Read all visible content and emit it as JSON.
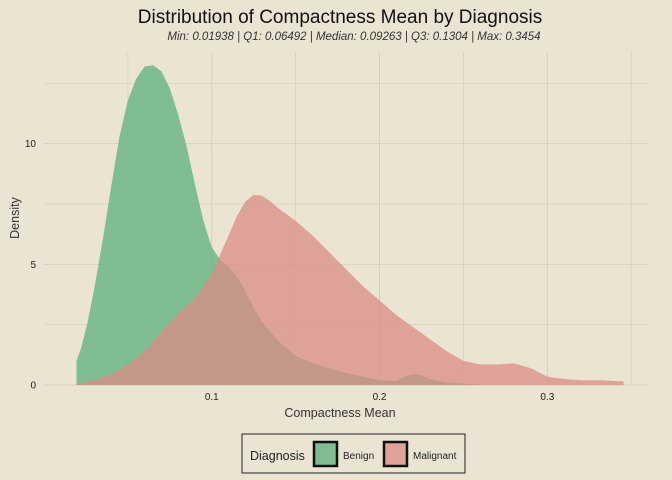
{
  "chart_data": {
    "type": "area",
    "title": "Distribution of Compactness Mean by Diagnosis",
    "subtitle": "Min: 0.01938 | Q1: 0.06492 | Median: 0.09263 | Q3: 0.1304 | Max: 0.3454",
    "xlabel": "Compactness Mean",
    "ylabel": "Density",
    "xlim": [
      0.0,
      0.36
    ],
    "ylim": [
      0,
      13.8
    ],
    "x_ticks": [
      0.1,
      0.2,
      0.3
    ],
    "x_tick_labels": [
      "0.1",
      "0.2",
      "0.3"
    ],
    "y_ticks": [
      0,
      5,
      10
    ],
    "y_tick_labels": [
      "0",
      "5",
      "10"
    ],
    "grid": true,
    "legend": {
      "position": "bottom",
      "title": "Diagnosis"
    },
    "series": [
      {
        "name": "Benign",
        "color": "#5cb07c",
        "points": [
          [
            0.0194,
            1.0
          ],
          [
            0.022,
            1.5
          ],
          [
            0.026,
            2.6
          ],
          [
            0.03,
            4.0
          ],
          [
            0.035,
            6.0
          ],
          [
            0.04,
            8.2
          ],
          [
            0.045,
            10.3
          ],
          [
            0.05,
            11.8
          ],
          [
            0.055,
            12.7
          ],
          [
            0.06,
            13.2
          ],
          [
            0.065,
            13.25
          ],
          [
            0.07,
            13.0
          ],
          [
            0.075,
            12.3
          ],
          [
            0.08,
            11.2
          ],
          [
            0.085,
            9.9
          ],
          [
            0.09,
            8.3
          ],
          [
            0.095,
            6.8
          ],
          [
            0.1,
            5.7
          ],
          [
            0.105,
            5.2
          ],
          [
            0.11,
            4.9
          ],
          [
            0.115,
            4.5
          ],
          [
            0.12,
            3.9
          ],
          [
            0.125,
            3.2
          ],
          [
            0.13,
            2.6
          ],
          [
            0.14,
            1.8
          ],
          [
            0.15,
            1.2
          ],
          [
            0.16,
            0.9
          ],
          [
            0.17,
            0.7
          ],
          [
            0.18,
            0.5
          ],
          [
            0.19,
            0.35
          ],
          [
            0.2,
            0.2
          ],
          [
            0.21,
            0.15
          ],
          [
            0.215,
            0.35
          ],
          [
            0.22,
            0.45
          ],
          [
            0.225,
            0.4
          ],
          [
            0.23,
            0.25
          ],
          [
            0.24,
            0.1
          ],
          [
            0.25,
            0.05
          ],
          [
            0.26,
            0.0
          ]
        ]
      },
      {
        "name": "Malignant",
        "color": "#d98c85",
        "points": [
          [
            0.0194,
            0.05
          ],
          [
            0.03,
            0.2
          ],
          [
            0.04,
            0.45
          ],
          [
            0.05,
            0.85
          ],
          [
            0.06,
            1.4
          ],
          [
            0.07,
            2.2
          ],
          [
            0.08,
            2.95
          ],
          [
            0.09,
            3.6
          ],
          [
            0.1,
            4.6
          ],
          [
            0.105,
            5.4
          ],
          [
            0.11,
            6.2
          ],
          [
            0.115,
            7.0
          ],
          [
            0.12,
            7.6
          ],
          [
            0.125,
            7.88
          ],
          [
            0.13,
            7.85
          ],
          [
            0.135,
            7.6
          ],
          [
            0.14,
            7.3
          ],
          [
            0.15,
            6.8
          ],
          [
            0.16,
            6.2
          ],
          [
            0.17,
            5.5
          ],
          [
            0.18,
            4.8
          ],
          [
            0.19,
            4.1
          ],
          [
            0.2,
            3.5
          ],
          [
            0.21,
            2.9
          ],
          [
            0.22,
            2.4
          ],
          [
            0.23,
            1.9
          ],
          [
            0.24,
            1.4
          ],
          [
            0.25,
            1.0
          ],
          [
            0.26,
            0.85
          ],
          [
            0.27,
            0.85
          ],
          [
            0.28,
            0.9
          ],
          [
            0.29,
            0.7
          ],
          [
            0.3,
            0.35
          ],
          [
            0.31,
            0.25
          ],
          [
            0.32,
            0.2
          ],
          [
            0.33,
            0.2
          ],
          [
            0.3454,
            0.15
          ]
        ]
      }
    ]
  }
}
